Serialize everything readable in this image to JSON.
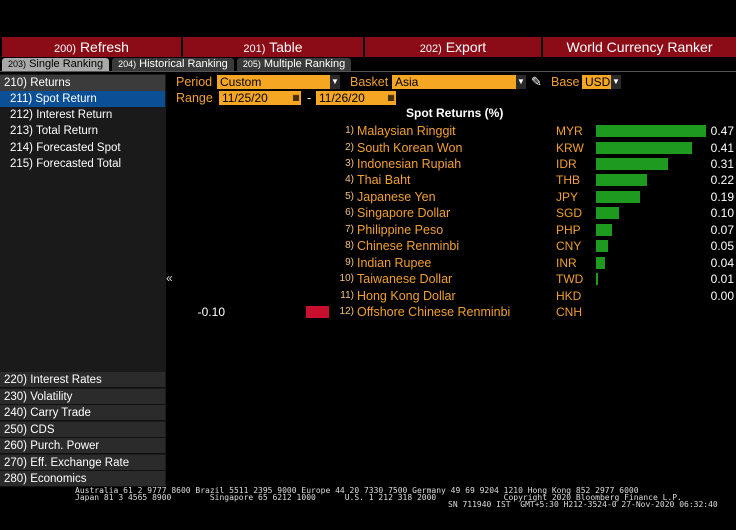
{
  "toolbar": {
    "refresh": {
      "num": "200)",
      "label": "Refresh"
    },
    "table": {
      "num": "201)",
      "label": "Table"
    },
    "export": {
      "num": "202)",
      "label": "Export"
    },
    "title": "World Currency Ranker"
  },
  "tabs": [
    {
      "num": "203)",
      "label": "Single Ranking"
    },
    {
      "num": "204)",
      "label": "Historical Ranking"
    },
    {
      "num": "205)",
      "label": "Multiple Ranking"
    }
  ],
  "sidebar": {
    "returns": "210) Returns",
    "sub": [
      "211) Spot Return",
      "212) Interest Return",
      "213) Total Return",
      "214) Forecasted Spot",
      "215) Forecasted Total"
    ],
    "bottom": [
      "220) Interest Rates",
      "230) Volatility",
      "240) Carry Trade",
      "250) CDS",
      "260) Purch. Power",
      "270) Eff. Exchange Rate",
      "280) Economics"
    ]
  },
  "controls": {
    "period_label": "Period",
    "period_value": "Custom",
    "basket_label": "Basket",
    "basket_value": "Asia",
    "base_label": "Base",
    "base_value": "USD",
    "range_label": "Range",
    "range_from": "11/25/20",
    "range_sep": "-",
    "range_to": "11/26/20"
  },
  "table": {
    "header": "Spot Returns (%)",
    "rows": [
      {
        "rank": "1)",
        "name": "Malaysian Ringgit",
        "code": "MYR",
        "value": "0.47"
      },
      {
        "rank": "2)",
        "name": "South Korean Won",
        "code": "KRW",
        "value": "0.41"
      },
      {
        "rank": "3)",
        "name": "Indonesian Rupiah",
        "code": "IDR",
        "value": "0.31"
      },
      {
        "rank": "4)",
        "name": "Thai Baht",
        "code": "THB",
        "value": "0.22"
      },
      {
        "rank": "5)",
        "name": "Japanese Yen",
        "code": "JPY",
        "value": "0.19"
      },
      {
        "rank": "6)",
        "name": "Singapore Dollar",
        "code": "SGD",
        "value": "0.10"
      },
      {
        "rank": "7)",
        "name": "Philippine Peso",
        "code": "PHP",
        "value": "0.07"
      },
      {
        "rank": "8)",
        "name": "Chinese Renminbi",
        "code": "CNY",
        "value": "0.05"
      },
      {
        "rank": "9)",
        "name": "Indian Rupee",
        "code": "INR",
        "value": "0.04"
      },
      {
        "rank": "10)",
        "name": "Taiwanese Dollar",
        "code": "TWD",
        "value": "0.01"
      },
      {
        "rank": "11)",
        "name": "Hong Kong Dollar",
        "code": "HKD",
        "value": "0.00"
      },
      {
        "rank": "12)",
        "name": "Offshore Chinese Renminbi",
        "code": "CNH",
        "value": "-0.10"
      }
    ]
  },
  "colors": {
    "positive": "#1e9b1e",
    "negative": "#c8102e",
    "accent": "#f0a030",
    "toolbar": "#8b0c16"
  },
  "footer": {
    "line1": "Australia 61 2 9777 8600 Brazil 5511 2395 9000 Europe 44 20 7330 7500 Germany 49 69 9204 1210 Hong Kong 852 2977 6000",
    "line2": "Japan 81 3 4565 8900        Singapore 65 6212 1000      U.S. 1 212 318 2000              Copyright 2020 Bloomberg Finance L.P.",
    "line3": "SN 711940 IST  GMT+5:30 H212-3524-0 27-Nov-2020 06:32:40"
  }
}
